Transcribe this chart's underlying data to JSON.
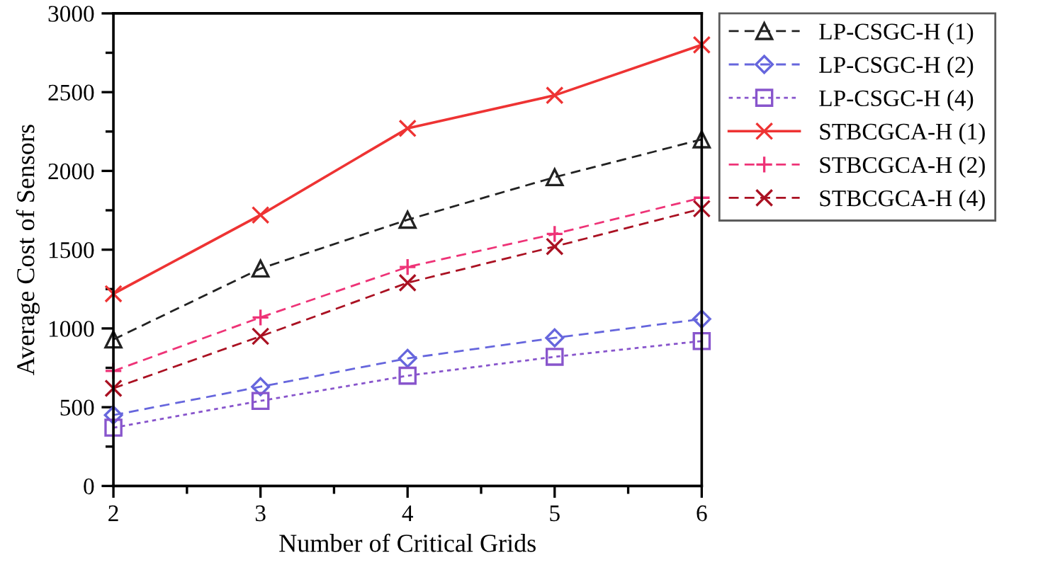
{
  "chart_data": {
    "type": "line",
    "xlabel": "Number of Critical Grids",
    "ylabel": "Average Cost of Sensors",
    "x": [
      2,
      3,
      4,
      5,
      6
    ],
    "xlim": [
      2,
      6
    ],
    "xticks": [
      2,
      3,
      4,
      5,
      6
    ],
    "ylim": [
      0,
      3000
    ],
    "yticks": [
      0,
      500,
      1000,
      1500,
      2000,
      2500,
      3000
    ],
    "grid": false,
    "legend": "top right",
    "series": [
      {
        "name": "LP-CSGC-H (1)",
        "color": "#222222",
        "marker": "triangle",
        "line_style": "dashed",
        "values": [
          930,
          1380,
          1690,
          1960,
          2200
        ]
      },
      {
        "name": "LP-CSGC-H (2)",
        "color": "#6666dd",
        "marker": "diamond",
        "line_style": "dashed",
        "values": [
          450,
          630,
          810,
          940,
          1060
        ]
      },
      {
        "name": "LP-CSGC-H (4)",
        "color": "#8855cc",
        "marker": "square",
        "line_style": "dotted",
        "values": [
          370,
          540,
          700,
          820,
          920
        ]
      },
      {
        "name": "STBCGCA-H (1)",
        "color": "#ee3333",
        "marker": "cross",
        "line_style": "solid",
        "values": [
          1220,
          1720,
          2270,
          2480,
          2800
        ]
      },
      {
        "name": "STBCGCA-H (2)",
        "color": "#ee3377",
        "marker": "plus",
        "line_style": "dashed",
        "values": [
          730,
          1070,
          1390,
          1600,
          1830
        ]
      },
      {
        "name": "STBCGCA-H (4)",
        "color": "#aa1122",
        "marker": "cross",
        "line_style": "dashed",
        "values": [
          620,
          950,
          1290,
          1520,
          1760
        ]
      }
    ]
  }
}
